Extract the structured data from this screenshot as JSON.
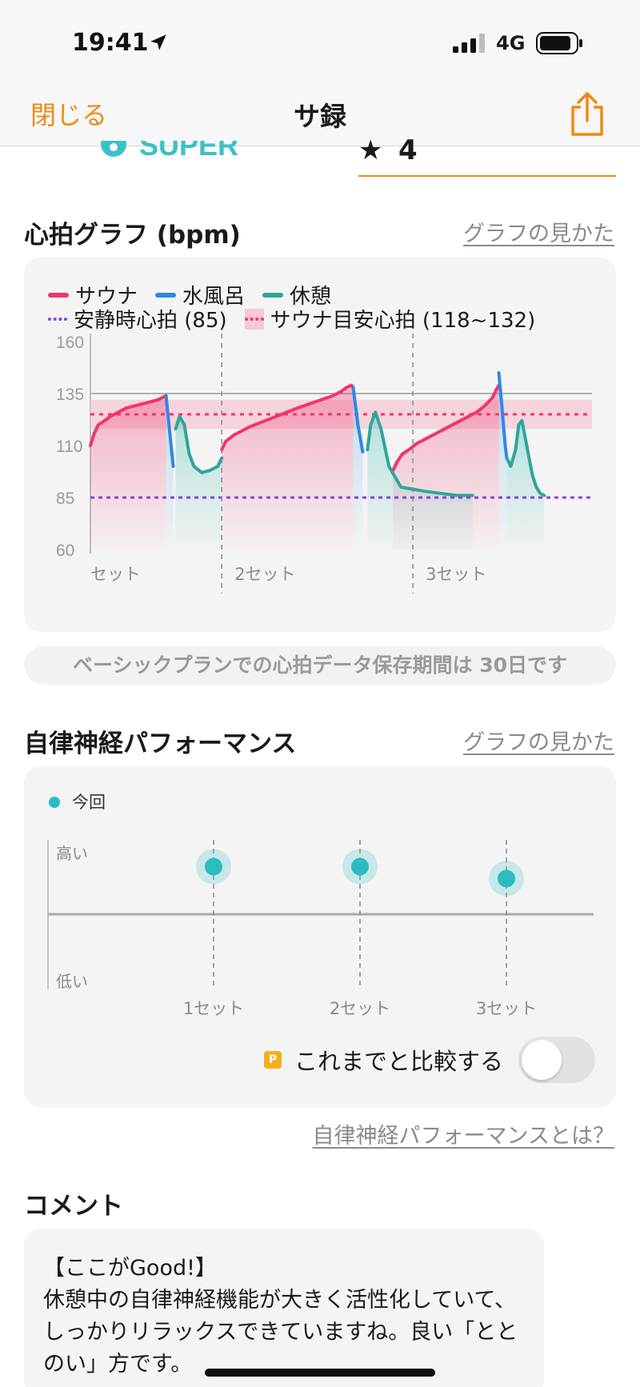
{
  "status_bar": {
    "time": "19:41",
    "network": "4G"
  },
  "nav": {
    "close_label": "閉じる",
    "title": "サ録"
  },
  "header_peek": {
    "logo_text": "SUPER",
    "rating_value": "4"
  },
  "heart_rate": {
    "title": "心拍グラフ (bpm)",
    "help_link": "グラフの見かた",
    "legend": {
      "sauna": "サウナ",
      "cold_bath": "水風呂",
      "rest": "休憩",
      "resting_hr": "安静時心拍 (85)",
      "target_hr": "サウナ目安心拍 (118~132)"
    },
    "colors": {
      "sauna": "#f0356b",
      "cold_bath": "#2f86e8",
      "rest": "#2fa59c",
      "resting": "#8a3de8"
    },
    "notice": "ベーシックプランでの心拍データ保存期間は 30日です"
  },
  "chart_data": [
    {
      "type": "line",
      "title": "心拍グラフ (bpm)",
      "ylabel": "bpm",
      "ylim": [
        60,
        160
      ],
      "yticks": [
        "160",
        "135",
        "110",
        "85",
        "60"
      ],
      "set_labels": [
        "セット",
        "2セット",
        "3セット"
      ],
      "resting_hr": 85,
      "target_band": [
        118,
        132
      ],
      "series": [
        {
          "name": "サウナ",
          "segments": [
            {
              "t": [
                0,
                5,
                10,
                18,
                25,
                35,
                45,
                55,
                65,
                75,
                85,
                90,
                95
              ],
              "bpm": [
                110,
                116,
                120,
                122,
                124,
                126,
                128,
                129,
                130,
                131,
                132,
                133,
                134
              ]
            },
            {
              "t": [
                165,
                170,
                180,
                200,
                220,
                240,
                260,
                275,
                290,
                305,
                315,
                322,
                328,
                330
              ],
              "bpm": [
                108,
                112,
                115,
                119,
                122,
                125,
                128,
                130,
                132,
                134,
                136,
                138,
                139,
                138
              ]
            },
            {
              "t": [
                380,
                385,
                392,
                400,
                410,
                425,
                440,
                455,
                470,
                485,
                495,
                505,
                510,
                513
              ],
              "bpm": [
                98,
                102,
                106,
                108,
                111,
                114,
                117,
                120,
                123,
                126,
                129,
                133,
                137,
                139
              ]
            }
          ]
        },
        {
          "name": "水風呂",
          "segments": [
            {
              "t": [
                95,
                100,
                104
              ],
              "bpm": [
                134,
                115,
                100
              ]
            },
            {
              "t": [
                330,
                336,
                342
              ],
              "bpm": [
                138,
                120,
                107
              ]
            },
            {
              "t": [
                513,
                517,
                521,
                523
              ],
              "bpm": [
                145,
                128,
                110,
                104
              ]
            }
          ]
        },
        {
          "name": "休憩",
          "segments": [
            {
              "t": [
                107,
                112,
                118,
                124,
                130,
                140,
                150,
                160,
                165
              ],
              "bpm": [
                118,
                124,
                120,
                106,
                100,
                97,
                98,
                100,
                104
              ]
            },
            {
              "t": [
                348,
                352,
                358,
                365,
                375,
                390,
                405,
                420,
                440,
                460,
                475,
                480
              ],
              "bpm": [
                108,
                120,
                126,
                118,
                100,
                90,
                89,
                88,
                87,
                86,
                86,
                86
              ]
            },
            {
              "t": [
                523,
                528,
                534,
                538,
                542,
                548,
                555,
                560,
                565,
                570
              ],
              "bpm": [
                104,
                100,
                108,
                120,
                122,
                110,
                96,
                90,
                87,
                86
              ]
            }
          ]
        }
      ]
    },
    {
      "type": "scatter",
      "title": "自律神経パフォーマンス",
      "categories": [
        "1セット",
        "2セット",
        "3セット"
      ],
      "series": [
        {
          "name": "今回",
          "values": [
            0.82,
            0.82,
            0.74
          ]
        }
      ],
      "y_labels": {
        "high": "高い",
        "low": "低い"
      }
    }
  ],
  "autonomic": {
    "title": "自律神経パフォーマンス",
    "help_link": "グラフの見かた",
    "legend_current": "今回",
    "y_high": "高い",
    "y_low": "低い",
    "sets": [
      "1セット",
      "2セット",
      "3セット"
    ],
    "compare_badge": "P",
    "compare_label": "これまでと比較する",
    "compare_enabled": false,
    "about_link": "自律神経パフォーマンスとは？"
  },
  "comment": {
    "title": "コメント",
    "heading": "【ここがGood!】",
    "body": "休憩中の自律神経機能が大きく活性化していて、しっかりリラックスできていますね。良い「ととのい」方です。"
  }
}
